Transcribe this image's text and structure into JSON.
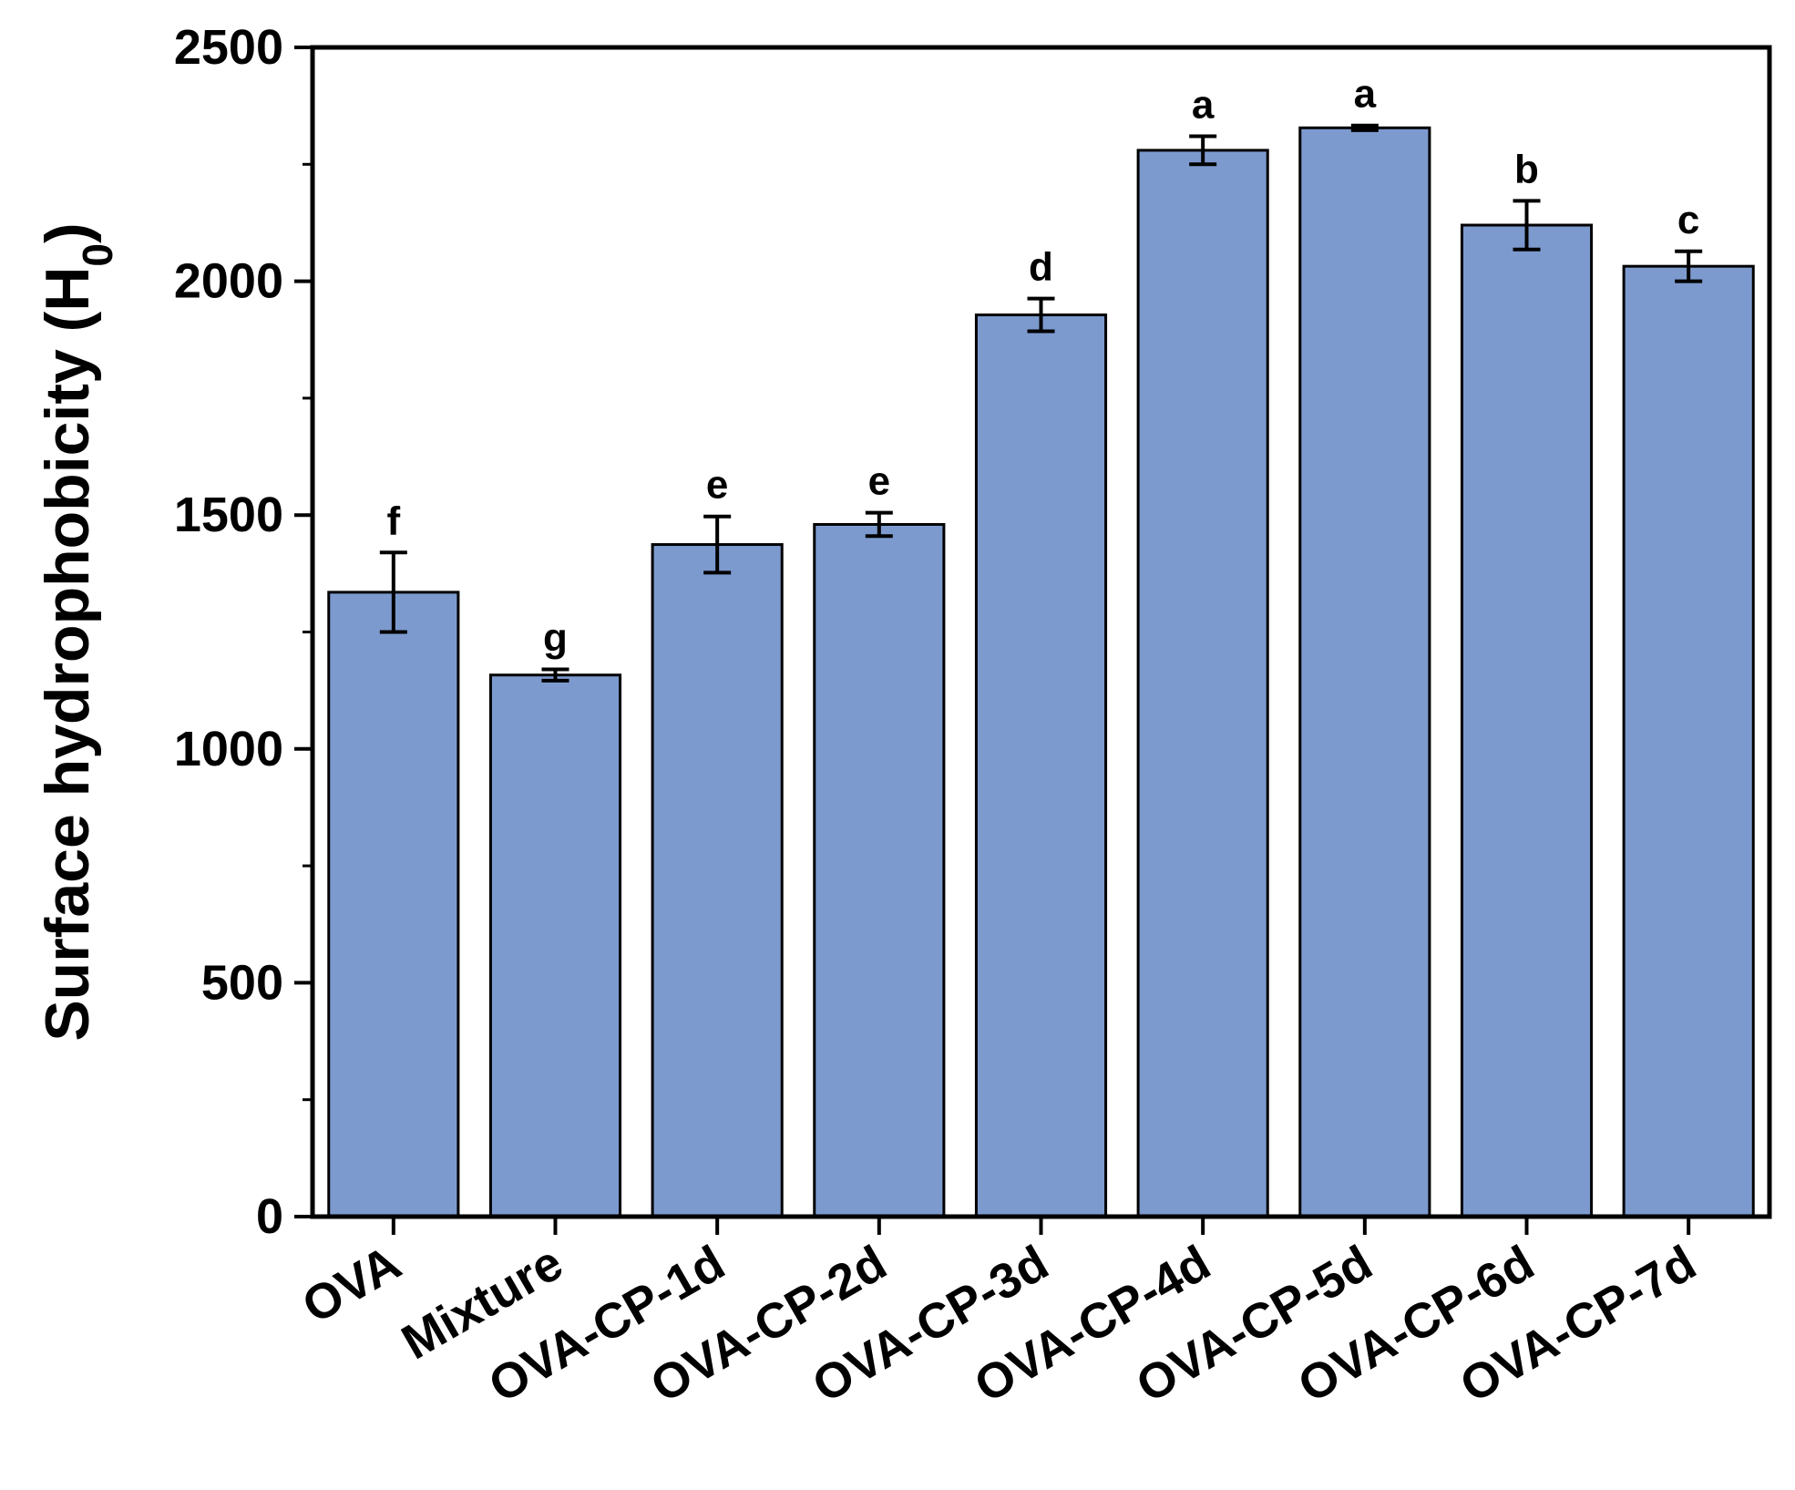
{
  "chart_data": {
    "type": "bar",
    "title": "",
    "xlabel": "",
    "ylabel": "Surface hydrophobicity (H",
    "ylabel_subscript": "0",
    "ylabel_close": ")",
    "ylim": [
      0,
      2500
    ],
    "yticks": [
      0,
      500,
      1000,
      1500,
      2000,
      2500
    ],
    "grid": false,
    "bar_color": "#7d9acf",
    "categories": [
      "OVA",
      "Mixture",
      "OVA-CP-1d",
      "OVA-CP-2d",
      "OVA-CP-3d",
      "OVA-CP-4d",
      "OVA-CP-5d",
      "OVA-CP-6d",
      "OVA-CP-7d"
    ],
    "values": [
      1335,
      1158,
      1437,
      1480,
      1928,
      2280,
      2328,
      2120,
      2032
    ],
    "errors": [
      85,
      12,
      60,
      25,
      35,
      30,
      5,
      52,
      32
    ],
    "significance": [
      "f",
      "g",
      "e",
      "e",
      "d",
      "a",
      "a",
      "b",
      "c"
    ]
  }
}
